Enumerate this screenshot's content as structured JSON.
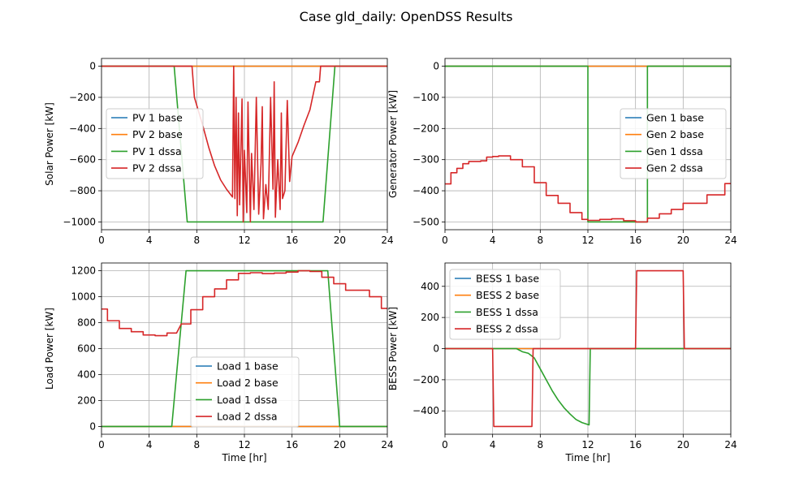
{
  "suptitle": "Case gld_daily: OpenDSS Results",
  "colors": {
    "c1": "#1f77b4",
    "c2": "#ff7f0e",
    "c3": "#2ca02c",
    "c4": "#d62728"
  },
  "chart_data": [
    {
      "type": "line",
      "ylabel": "Solar Power [kW]",
      "xlabel": "",
      "xlim": [
        0,
        24
      ],
      "ylim": [
        -1050,
        50
      ],
      "xticks": [
        "0",
        "4",
        "8",
        "12",
        "16",
        "20",
        "24"
      ],
      "yticks": [
        "0",
        "−200",
        "−400",
        "−600",
        "−800",
        "−1000"
      ],
      "grid": true,
      "legend_position": "center-left",
      "series": [
        {
          "name": "PV 1 base",
          "x": [
            0,
            24
          ],
          "y": [
            0,
            0
          ]
        },
        {
          "name": "PV 2 base",
          "x": [
            0,
            24
          ],
          "y": [
            0,
            0
          ]
        },
        {
          "name": "PV 1 dssa",
          "x": [
            0,
            6.1,
            7.2,
            18.6,
            19.6,
            24
          ],
          "y": [
            0,
            0,
            -1000,
            -1000,
            0,
            0
          ]
        },
        {
          "name": "PV 2 dssa",
          "x": [
            0,
            7.6,
            7.8,
            8.5,
            9,
            9.5,
            10,
            10.5,
            11,
            11.1,
            11.2,
            11.3,
            11.4,
            11.5,
            11.6,
            11.8,
            11.9,
            12,
            12.2,
            12.3,
            12.5,
            12.6,
            12.8,
            13,
            13.2,
            13.4,
            13.5,
            13.6,
            13.8,
            14,
            14.2,
            14.4,
            14.5,
            14.6,
            14.8,
            15,
            15.1,
            15.2,
            15.4,
            15.6,
            15.8,
            16,
            16.5,
            17,
            17.5,
            18,
            18.3,
            18.4,
            24
          ],
          "y": [
            0,
            0,
            -200,
            -380,
            -520,
            -640,
            -730,
            -790,
            -840,
            0,
            -850,
            -200,
            -960,
            -300,
            -890,
            -210,
            -1000,
            -540,
            -940,
            -230,
            -1000,
            -560,
            -920,
            -200,
            -950,
            -620,
            -260,
            -980,
            -760,
            -920,
            -200,
            -790,
            -100,
            -970,
            -600,
            -920,
            -300,
            -850,
            -800,
            -220,
            -740,
            -580,
            -490,
            -380,
            -280,
            -100,
            -100,
            0,
            0
          ]
        }
      ]
    },
    {
      "type": "line",
      "ylabel": "Generator Power [kW]",
      "xlabel": "",
      "xlim": [
        0,
        24
      ],
      "ylim": [
        -525,
        25
      ],
      "xticks": [
        "0",
        "4",
        "8",
        "12",
        "16",
        "20",
        "24"
      ],
      "yticks": [
        "0",
        "−100",
        "−200",
        "−300",
        "−400",
        "−500"
      ],
      "grid": true,
      "legend_position": "center-right",
      "series": [
        {
          "name": "Gen 1 base",
          "x": [
            0,
            24
          ],
          "y": [
            0,
            0
          ]
        },
        {
          "name": "Gen 2 base",
          "x": [
            0,
            24
          ],
          "y": [
            0,
            0
          ]
        },
        {
          "name": "Gen 1 dssa",
          "x": [
            0,
            12,
            12,
            17,
            17,
            24
          ],
          "y": [
            0,
            0,
            -500,
            -500,
            0,
            0
          ]
        },
        {
          "name": "Gen 2 dssa",
          "x": [
            0,
            0.5,
            0.5,
            1,
            1,
            1.5,
            1.5,
            2,
            2,
            3,
            3,
            3.5,
            3.5,
            4,
            4,
            4.5,
            4.5,
            5.5,
            5.5,
            6.5,
            6.5,
            7.5,
            7.5,
            8.5,
            8.5,
            9.5,
            9.5,
            10.5,
            10.5,
            11.5,
            11.5,
            12,
            12,
            13,
            13,
            14,
            14,
            15,
            15,
            16,
            16,
            17,
            17,
            18,
            18,
            19,
            19,
            20,
            20,
            22,
            22,
            23.5,
            23.5,
            24
          ],
          "y": [
            -378,
            -378,
            -342,
            -342,
            -328,
            -328,
            -313,
            -313,
            -306,
            -306,
            -304,
            -304,
            -292,
            -292,
            -290,
            -290,
            -288,
            -288,
            -300,
            -300,
            -323,
            -323,
            -374,
            -374,
            -415,
            -415,
            -440,
            -440,
            -470,
            -470,
            -492,
            -492,
            -495,
            -495,
            -492,
            -492,
            -490,
            -490,
            -496,
            -496,
            -500,
            -500,
            -488,
            -488,
            -474,
            -474,
            -460,
            -460,
            -440,
            -440,
            -413,
            -413,
            -377,
            -377
          ]
        }
      ]
    },
    {
      "type": "line",
      "ylabel": "Load Power [kW]",
      "xlabel": "Time [hr]",
      "xlim": [
        0,
        24
      ],
      "ylim": [
        -60,
        1260
      ],
      "xticks": [
        "0",
        "4",
        "8",
        "12",
        "16",
        "20",
        "24"
      ],
      "yticks": [
        "0",
        "200",
        "400",
        "600",
        "800",
        "1000",
        "1200"
      ],
      "grid": true,
      "legend_position": "bottom-center",
      "series": [
        {
          "name": "Load 1 base",
          "x": [
            0,
            24
          ],
          "y": [
            0,
            0
          ]
        },
        {
          "name": "Load 2 base",
          "x": [
            0,
            24
          ],
          "y": [
            0,
            0
          ]
        },
        {
          "name": "Load 1 dssa",
          "x": [
            0,
            5.9,
            7.1,
            19,
            20,
            24
          ],
          "y": [
            0,
            0,
            1200,
            1200,
            0,
            0
          ]
        },
        {
          "name": "Load 2 dssa",
          "x": [
            0,
            0.5,
            0.5,
            1.5,
            1.5,
            2.5,
            2.5,
            3.5,
            3.5,
            4.5,
            4.5,
            5.5,
            5.5,
            6.3,
            6.7,
            7.5,
            7.5,
            8.5,
            8.5,
            9.5,
            9.5,
            10.5,
            10.5,
            11.5,
            11.5,
            12.5,
            12.5,
            13.5,
            13.5,
            14.5,
            14.5,
            15.5,
            15.5,
            16.5,
            16.5,
            17.5,
            17.5,
            18.5,
            18.5,
            19.5,
            19.5,
            20.5,
            20.5,
            22.5,
            22.5,
            23.5,
            23.5,
            24
          ],
          "y": [
            905,
            905,
            815,
            815,
            755,
            755,
            730,
            730,
            705,
            705,
            700,
            700,
            720,
            720,
            790,
            790,
            900,
            900,
            1000,
            1000,
            1060,
            1060,
            1130,
            1130,
            1180,
            1180,
            1185,
            1185,
            1178,
            1178,
            1182,
            1182,
            1190,
            1190,
            1200,
            1200,
            1195,
            1195,
            1150,
            1150,
            1100,
            1100,
            1050,
            1050,
            1000,
            1000,
            910,
            910
          ]
        }
      ]
    },
    {
      "type": "line",
      "ylabel": "BESS Power [kW]",
      "xlabel": "Time [hr]",
      "xlim": [
        0,
        24
      ],
      "ylim": [
        -550,
        550
      ],
      "xticks": [
        "0",
        "4",
        "8",
        "12",
        "16",
        "20",
        "24"
      ],
      "yticks": [
        "400",
        "200",
        "0",
        "−200",
        "−400"
      ],
      "grid": true,
      "legend_position": "top-left",
      "series": [
        {
          "name": "BESS 1 base",
          "x": [
            0,
            24
          ],
          "y": [
            0,
            0
          ]
        },
        {
          "name": "BESS 2 base",
          "x": [
            0,
            24
          ],
          "y": [
            0,
            0
          ]
        },
        {
          "name": "BESS 1 dssa",
          "x": [
            0,
            6,
            6.5,
            7,
            7.5,
            8,
            8.5,
            9,
            9.5,
            10,
            10.5,
            11,
            11.5,
            12.1,
            12.2,
            24
          ],
          "y": [
            0,
            0,
            -20,
            -30,
            -60,
            -130,
            -200,
            -270,
            -330,
            -380,
            -420,
            -455,
            -475,
            -490,
            0,
            0
          ]
        },
        {
          "name": "BESS 2 dssa",
          "x": [
            0,
            4,
            4.1,
            7.3,
            7.4,
            16,
            16.1,
            20,
            20.1,
            24
          ],
          "y": [
            0,
            0,
            -500,
            -500,
            0,
            0,
            500,
            500,
            0,
            0
          ]
        }
      ]
    }
  ]
}
